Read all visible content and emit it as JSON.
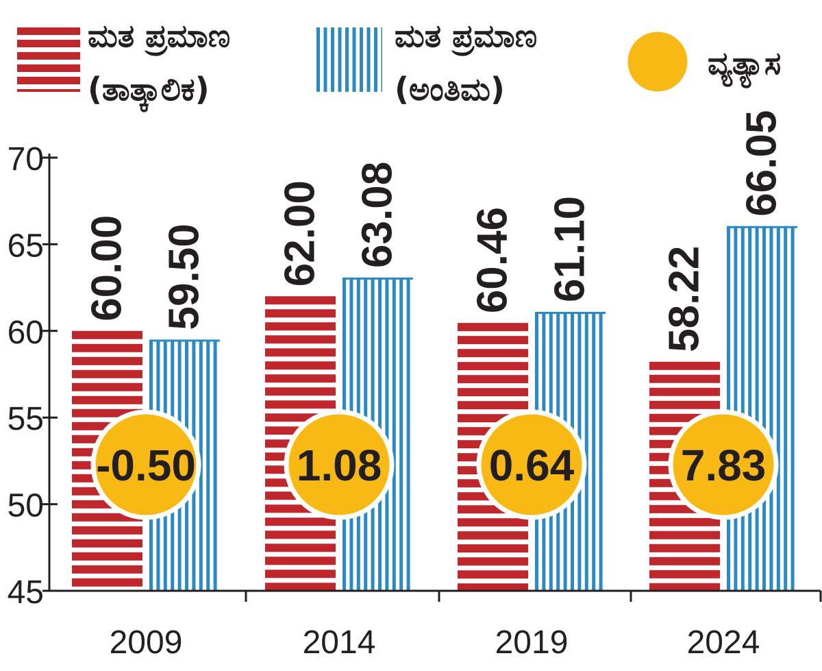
{
  "chart_data": {
    "type": "bar",
    "categories": [
      "2009",
      "2014",
      "2019",
      "2024"
    ],
    "series": [
      {
        "name": "ಮತ ಪ್ರಮಾಣ (ತಾತ್ಕಾಲಿಕ)",
        "values": [
          60.0,
          62.0,
          60.46,
          58.22
        ],
        "labels": [
          "60.00",
          "62.00",
          "60.46",
          "58.22"
        ]
      },
      {
        "name": "ಮತ ಪ್ರಮಾಣ (ಅಂತಿಮ)",
        "values": [
          59.5,
          63.08,
          61.1,
          66.05
        ],
        "labels": [
          "59.50",
          "63.08",
          "61.10",
          "66.05"
        ]
      }
    ],
    "difference": {
      "name": "ವ್ಯತ್ಯಾಸ",
      "values": [
        "-0.50",
        "1.08",
        "0.64",
        "7.83"
      ]
    },
    "ylim": [
      45,
      70
    ],
    "yticks": [
      "70",
      "65",
      "60",
      "55",
      "50",
      "45"
    ],
    "grid": false,
    "legend_position": "top"
  },
  "legend": {
    "provisional_line1": "ಮತ ಪ್ರಮಾಣ",
    "provisional_line2": "(ತಾತ್ಕಾಲಿಕ)",
    "final_line1": "ಮತ ಪ್ರಮಾಣ",
    "final_line2": "(ಅಂತಿಮ)",
    "difference": "ವ್ಯತ್ಯಾಸ"
  },
  "colors": {
    "provisional": "#c0272d",
    "final": "#2b8ac6",
    "difference": "#f9b915",
    "axis": "#231f20",
    "text": "#231f20"
  }
}
